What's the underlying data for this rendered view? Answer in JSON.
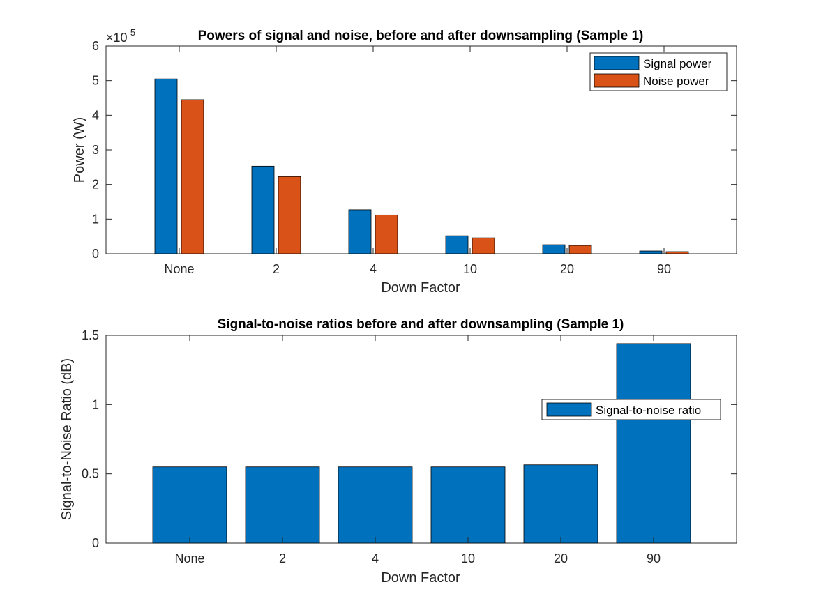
{
  "chart_data": [
    {
      "type": "bar",
      "title": "Powers of signal and noise, before and after downsampling (Sample 1)",
      "xlabel": "Down Factor",
      "ylabel": "Power (W)",
      "categories": [
        "None",
        "2",
        "4",
        "10",
        "20",
        "90"
      ],
      "ylim": [
        0,
        6
      ],
      "yticks": [
        0,
        1,
        2,
        3,
        4,
        5,
        6
      ],
      "exponent_base": "×10",
      "exponent_power": "-5",
      "legend_position": "top-right",
      "series": [
        {
          "name": "Signal power",
          "color": "#0072BD",
          "values": [
            5.05,
            2.53,
            1.27,
            0.52,
            0.26,
            0.08
          ]
        },
        {
          "name": "Noise power",
          "color": "#D95319",
          "values": [
            4.45,
            2.23,
            1.12,
            0.46,
            0.24,
            0.06
          ]
        }
      ]
    },
    {
      "type": "bar",
      "title": "Signal-to-noise ratios before and after downsampling (Sample 1)",
      "xlabel": "Down Factor",
      "ylabel": "Signal-to-Noise Ratio (dB)",
      "categories": [
        "None",
        "2",
        "4",
        "10",
        "20",
        "90"
      ],
      "ylim": [
        0,
        1.5
      ],
      "yticks": [
        0,
        0.5,
        1,
        1.5
      ],
      "legend_position": "right",
      "series": [
        {
          "name": "Signal-to-noise ratio",
          "color": "#0072BD",
          "values": [
            0.55,
            0.55,
            0.55,
            0.55,
            0.565,
            1.44
          ]
        }
      ]
    }
  ]
}
